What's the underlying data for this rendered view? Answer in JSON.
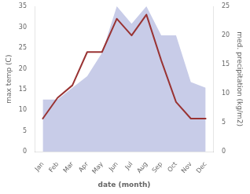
{
  "chart_data": {
    "type": "line",
    "categories": [
      "Jan",
      "Feb",
      "Mar",
      "Apr",
      "May",
      "Jun",
      "Jul",
      "Aug",
      "Sep",
      "Oct",
      "Nov",
      "Dec"
    ],
    "series": [
      {
        "type": "line",
        "color": "#993333",
        "values": [
          8,
          13,
          16,
          24,
          24,
          32,
          28,
          33,
          22,
          12,
          8,
          8
        ]
      },
      {
        "type": "area",
        "color": "#c8cce8",
        "axis": "y2",
        "values": [
          9,
          9,
          11,
          13,
          17,
          25,
          22,
          25,
          20,
          20,
          12,
          11
        ]
      }
    ],
    "xlabel": "date (month)",
    "ylabel": "max temp (C)",
    "y2label": "med. precipitation (kg/m2)",
    "ylim": [
      0,
      35
    ],
    "yticks": [
      0,
      5,
      10,
      15,
      20,
      25,
      30,
      35
    ],
    "y2lim": [
      0,
      25
    ],
    "y2ticks": [
      0,
      5,
      10,
      15,
      20,
      25
    ],
    "grid": false
  }
}
